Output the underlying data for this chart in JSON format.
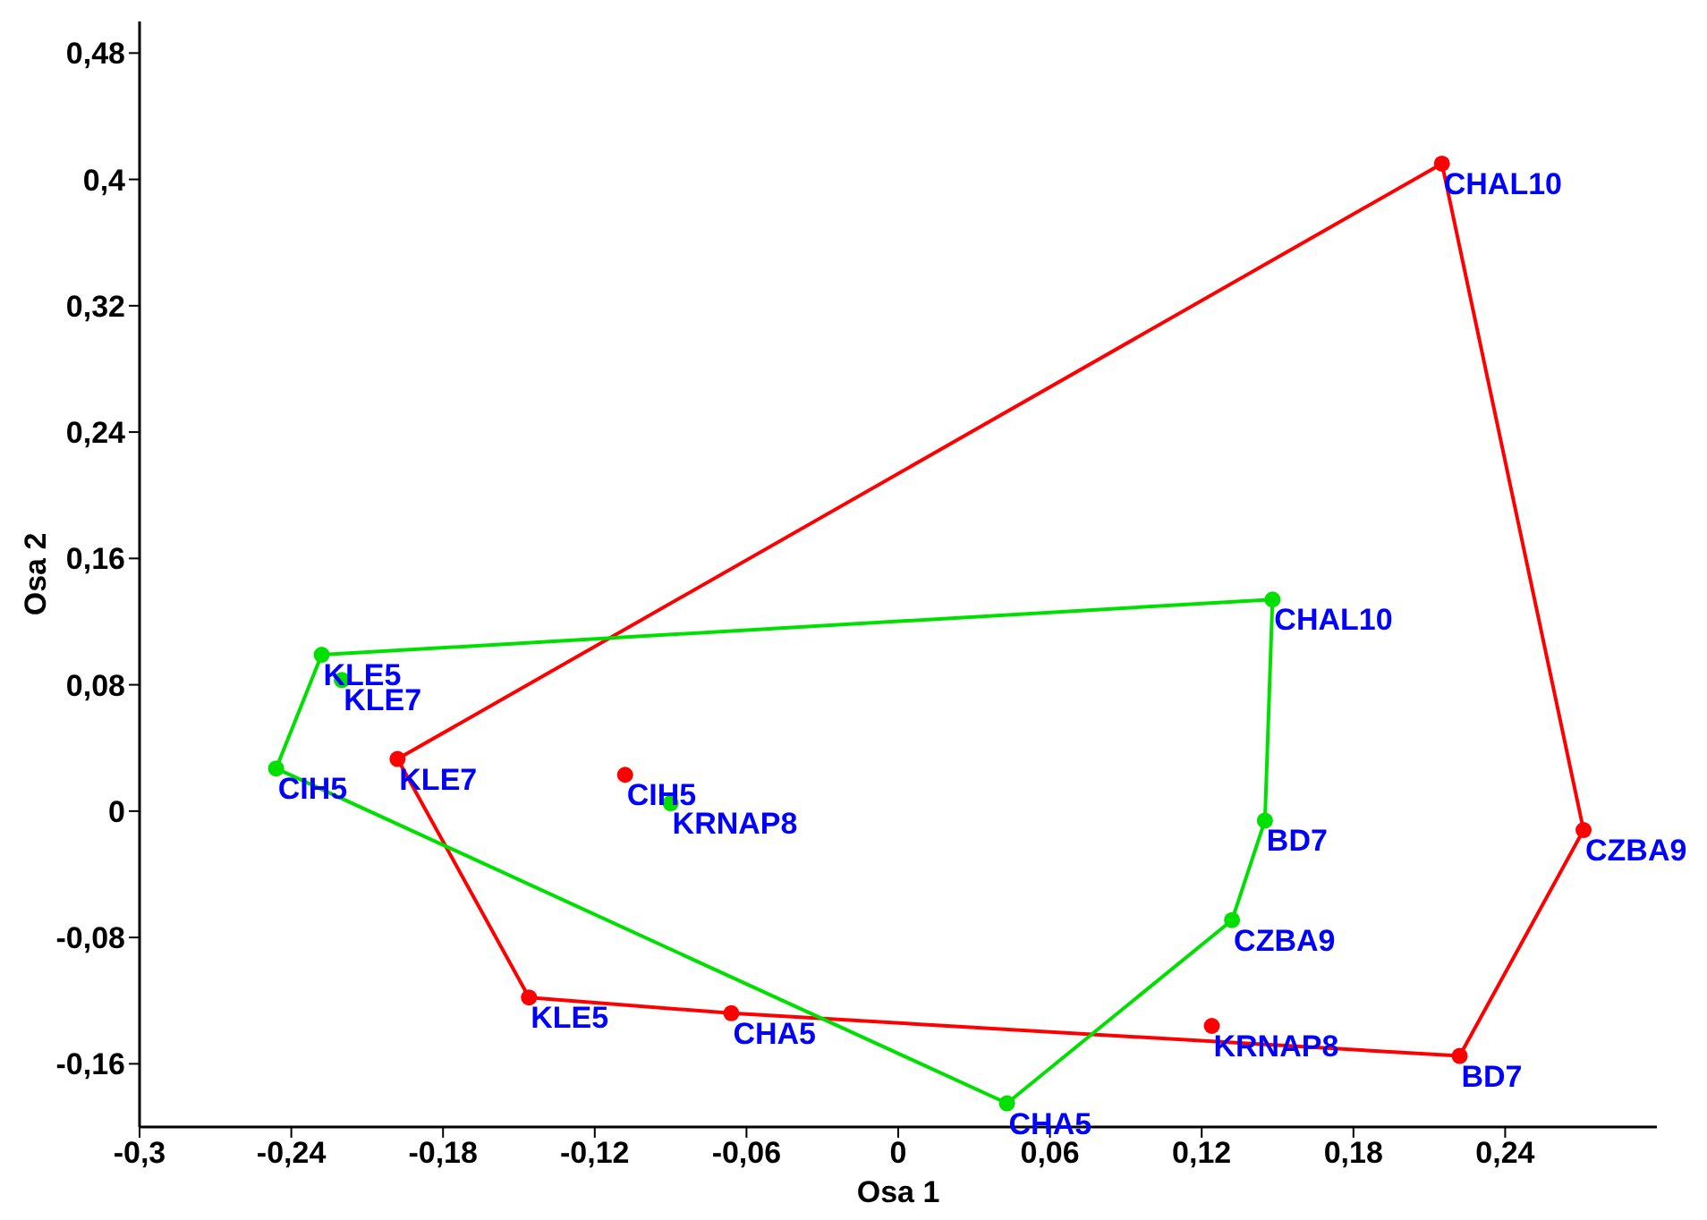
{
  "chart_data": {
    "type": "scatter",
    "xlabel": "Osa 1",
    "ylabel": "Osa 2",
    "xlim": [
      -0.3,
      0.3
    ],
    "xticks": [
      {
        "value": -0.3,
        "label": "-0,3"
      },
      {
        "value": -0.24,
        "label": "-0,24"
      },
      {
        "value": -0.18,
        "label": "-0,18"
      },
      {
        "value": -0.12,
        "label": "-0,12"
      },
      {
        "value": -0.06,
        "label": "-0,06"
      },
      0,
      {
        "value": 0.06,
        "label": "0,06"
      },
      {
        "value": 0.12,
        "label": "0,12"
      },
      {
        "value": 0.18,
        "label": "0,18"
      },
      {
        "value": 0.24,
        "label": "0,24"
      }
    ],
    "ylim": [
      -0.2,
      0.5
    ],
    "yticks": [
      {
        "value": -0.16,
        "label": "-0,16"
      },
      {
        "value": -0.08,
        "label": "-0,08"
      },
      0,
      {
        "value": 0.08,
        "label": "0,08"
      },
      {
        "value": 0.16,
        "label": "0,16"
      },
      {
        "value": 0.24,
        "label": "0,24"
      },
      {
        "value": 0.32,
        "label": "0,32"
      },
      {
        "value": 0.4,
        "label": "0,4"
      },
      {
        "value": 0.48,
        "label": "0,48"
      }
    ],
    "marker": "circle",
    "series": [
      {
        "color": "#ff0000",
        "x": [
          0.215,
          0.271,
          0.222,
          0.124,
          -0.066,
          -0.146,
          -0.198,
          -0.108
        ],
        "values": [
          0.41,
          -0.012,
          -0.155,
          -0.136,
          -0.128,
          -0.118,
          0.033,
          0.023
        ]
      },
      {
        "type": "line",
        "color": "#ff0000",
        "marker": "none",
        "x": [
          -0.198,
          0.215,
          0.271
        ],
        "values": [
          0.033,
          0.41,
          -0.012
        ]
      },
      {
        "type": "line",
        "color": "#ff0000",
        "marker": "none",
        "x": [
          -0.198,
          -0.146,
          -0.066,
          0.222,
          0.271
        ],
        "values": [
          0.033,
          -0.118,
          -0.128,
          -0.155,
          -0.012
        ]
      },
      {
        "color": "#00e000",
        "x": [
          0.148,
          0.145,
          0.132,
          0.043,
          -0.246,
          -0.228,
          -0.22,
          -0.09
        ],
        "values": [
          0.134,
          -0.006,
          -0.069,
          -0.185,
          0.027,
          0.099,
          0.083,
          0.005
        ]
      },
      {
        "type": "line",
        "color": "#00e000",
        "marker": "none",
        "x": [
          -0.246,
          -0.228,
          0.148
        ],
        "values": [
          0.027,
          0.099,
          0.134
        ]
      },
      {
        "type": "line",
        "color": "#00e000",
        "marker": "none",
        "x": [
          -0.246,
          0.043,
          0.132,
          0.145,
          0.148
        ],
        "values": [
          0.027,
          -0.185,
          -0.069,
          -0.006,
          0.134
        ]
      }
    ],
    "annotations": [
      {
        "text": "CHAL10",
        "x": 0.215,
        "y": 0.41
      },
      {
        "text": "CZBA9",
        "x": 0.271,
        "y": -0.012
      },
      {
        "text": "BD7",
        "x": 0.222,
        "y": -0.155
      },
      {
        "text": "KRNAP8",
        "x": 0.124,
        "y": -0.136
      },
      {
        "text": "CHA5",
        "x": -0.066,
        "y": -0.128
      },
      {
        "text": "KLE5",
        "x": -0.146,
        "y": -0.118
      },
      {
        "text": "KLE7",
        "x": -0.198,
        "y": 0.033
      },
      {
        "text": "CIH5",
        "x": -0.108,
        "y": 0.023
      },
      {
        "text": "CHAL10",
        "x": 0.148,
        "y": 0.134
      },
      {
        "text": "BD7",
        "x": 0.145,
        "y": -0.006
      },
      {
        "text": "CZBA9",
        "x": 0.132,
        "y": -0.069
      },
      {
        "text": "CHA5",
        "x": 0.043,
        "y": -0.185
      },
      {
        "text": "CIH5",
        "x": -0.246,
        "y": 0.027
      },
      {
        "text": "KLE5",
        "x": -0.228,
        "y": 0.099
      },
      {
        "text": "KLE7",
        "x": -0.22,
        "y": 0.083
      },
      {
        "text": "KRNAP8",
        "x": -0.09,
        "y": 0.005
      }
    ]
  }
}
